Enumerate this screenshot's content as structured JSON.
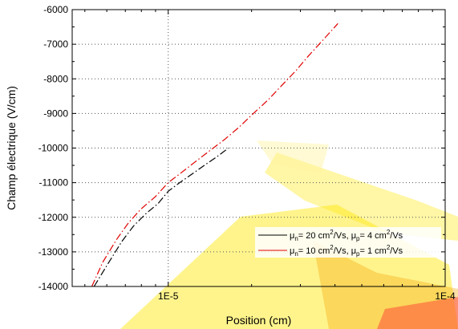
{
  "chart_data": {
    "type": "line",
    "title": "",
    "xlabel": "Position (cm)",
    "ylabel": "Champ électrique (V/cm)",
    "x_scale": "log",
    "xlim": [
      4.5e-06,
      0.0001
    ],
    "ylim": [
      -14000,
      -6000
    ],
    "x_ticks": [
      {
        "value": 1e-05,
        "label": "1E-5"
      },
      {
        "value": 0.0001,
        "label": "1E-4"
      }
    ],
    "y_ticks": [
      {
        "value": -6000,
        "label": "-6000"
      },
      {
        "value": -7000,
        "label": "-7000"
      },
      {
        "value": -8000,
        "label": "-8000"
      },
      {
        "value": -9000,
        "label": "-9000"
      },
      {
        "value": -10000,
        "label": "-10000"
      },
      {
        "value": -11000,
        "label": "-11000"
      },
      {
        "value": -12000,
        "label": "-12000"
      },
      {
        "value": -13000,
        "label": "-13000"
      },
      {
        "value": -14000,
        "label": "-14000"
      }
    ],
    "grid": true,
    "legend_position": "lower-right",
    "series": [
      {
        "color": "#000000",
        "style": "dash-dot",
        "legend": {
          "mu": "μ",
          "n_sub": "n",
          "eq1": "= 20 cm",
          "sup1": "2",
          "mid": "/Vs, μ",
          "p_sub": "p",
          "eq2": "= 4 cm",
          "sup2": "2",
          "tail": "/Vs"
        },
        "x": [
          5.4e-06,
          6e-06,
          6.8e-06,
          7.5e-06,
          8.3e-06,
          9.2e-06,
          1e-05,
          1.1e-05,
          1.22e-05,
          1.35e-05,
          1.5e-05,
          1.65e-05
        ],
        "y": [
          -14000,
          -13400,
          -12700,
          -12250,
          -11900,
          -11600,
          -11250,
          -11000,
          -10750,
          -10500,
          -10250,
          -10000
        ]
      },
      {
        "color": "#e00000",
        "style": "dash-dot",
        "legend": {
          "mu": "μ",
          "n_sub": "n",
          "eq1": "= 10 cm",
          "sup1": "2",
          "mid": "/Vs, μ",
          "p_sub": "p",
          "eq2": "= 1 cm",
          "sup2": "2",
          "tail": "/Vs"
        },
        "x": [
          5.3e-06,
          5.8e-06,
          6.5e-06,
          7.2e-06,
          8e-06,
          9e-06,
          1e-05,
          1.12e-05,
          1.25e-05,
          1.4e-05,
          1.6e-05,
          1.8e-05,
          2e-05,
          2.3e-05,
          2.6e-05,
          2.9e-05,
          3.2e-05,
          3.6e-05,
          4.1e-05
        ],
        "y": [
          -14000,
          -13300,
          -12650,
          -12150,
          -11750,
          -11400,
          -11000,
          -10700,
          -10400,
          -10100,
          -9750,
          -9400,
          -9050,
          -8600,
          -8150,
          -7750,
          -7350,
          -6900,
          -6400
        ]
      }
    ]
  }
}
